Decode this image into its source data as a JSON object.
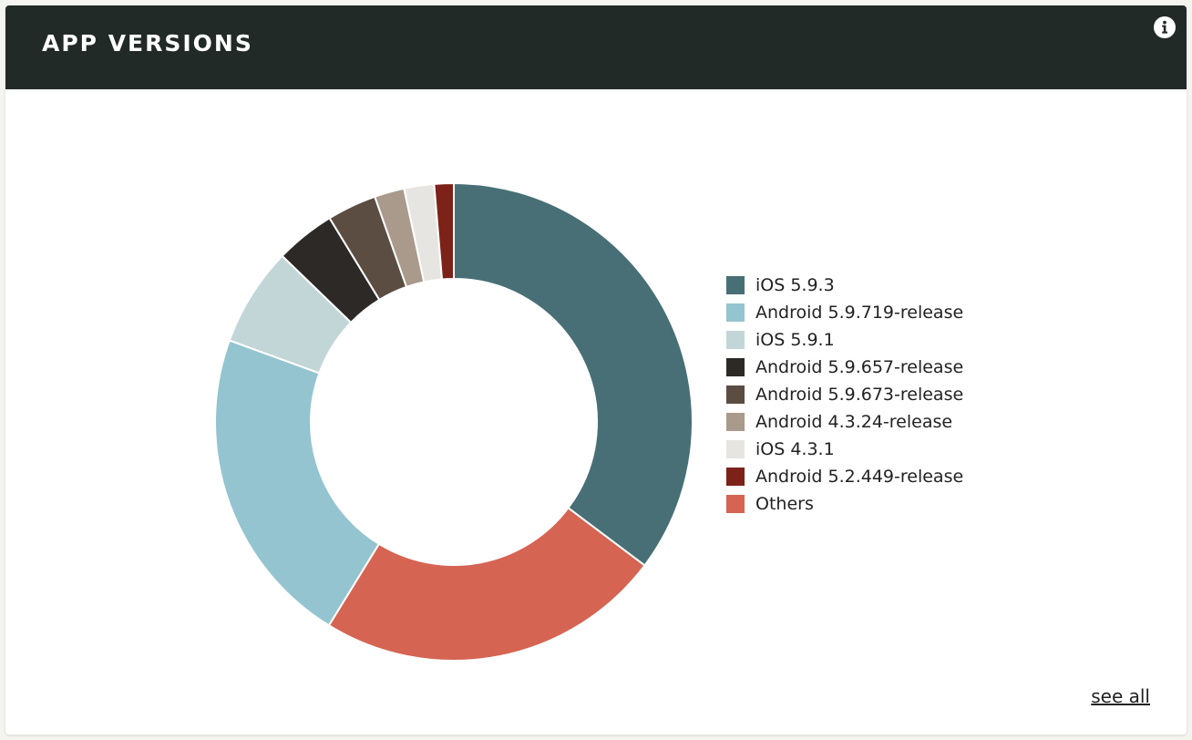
{
  "card": {
    "title": "APP VERSIONS",
    "see_all_label": "see all",
    "info_icon": "info-circle-icon"
  },
  "chart_data": {
    "type": "pie",
    "style": "donut",
    "title": "",
    "legend_position": "right",
    "slices": [
      {
        "label": "iOS 5.9.3",
        "value": 34.8,
        "color": "#486f76"
      },
      {
        "label": "Others",
        "value": 23.2,
        "color": "#d66452"
      },
      {
        "label": "Android 5.9.719-release",
        "value": 21.5,
        "color": "#94c4d0"
      },
      {
        "label": "iOS 5.9.1",
        "value": 6.6,
        "color": "#c2d6d8"
      },
      {
        "label": "Android 5.9.657-release",
        "value": 4.0,
        "color": "#2c2926"
      },
      {
        "label": "Android 5.9.673-release",
        "value": 3.3,
        "color": "#5c4d42"
      },
      {
        "label": "Android 4.3.24-release",
        "value": 2.0,
        "color": "#a99a8c"
      },
      {
        "label": "iOS 4.3.1",
        "value": 2.0,
        "color": "#e7e5e2"
      },
      {
        "label": "Android 5.2.449-release",
        "value": 1.3,
        "color": "#7d2218"
      }
    ],
    "legend_order": [
      "iOS 5.9.3",
      "Android 5.9.719-release",
      "iOS 5.9.1",
      "Android 5.9.657-release",
      "Android 5.9.673-release",
      "Android 4.3.24-release",
      "iOS 4.3.1",
      "Android 5.2.449-release",
      "Others"
    ]
  }
}
